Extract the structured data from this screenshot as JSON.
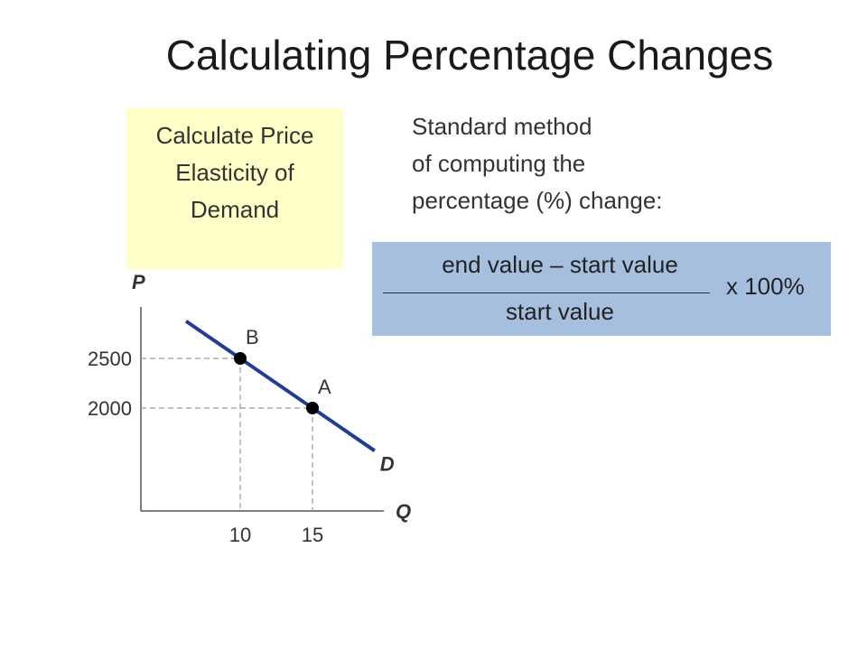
{
  "slide": {
    "title": "Calculating Percentage Changes",
    "box_lines": [
      "Calculate Price",
      "Elasticity of",
      "Demand"
    ],
    "method_lines": [
      "Standard method",
      "of computing the",
      "percentage (%) change:"
    ],
    "formula": {
      "numerator": "end value – start value",
      "denominator": "start value",
      "multiplier": "x 100%"
    }
  },
  "chart_data": {
    "type": "line",
    "xlabel": "Q",
    "ylabel": "P",
    "curve_label": "D",
    "x_ticks": [
      10,
      15
    ],
    "y_ticks": [
      2500,
      2000
    ],
    "points": [
      {
        "label": "B",
        "x": 10,
        "y": 2500
      },
      {
        "label": "A",
        "x": 15,
        "y": 2000
      }
    ],
    "colors": {
      "curve": "#1f3c99",
      "axis": "#555555",
      "guide": "#999999"
    }
  }
}
